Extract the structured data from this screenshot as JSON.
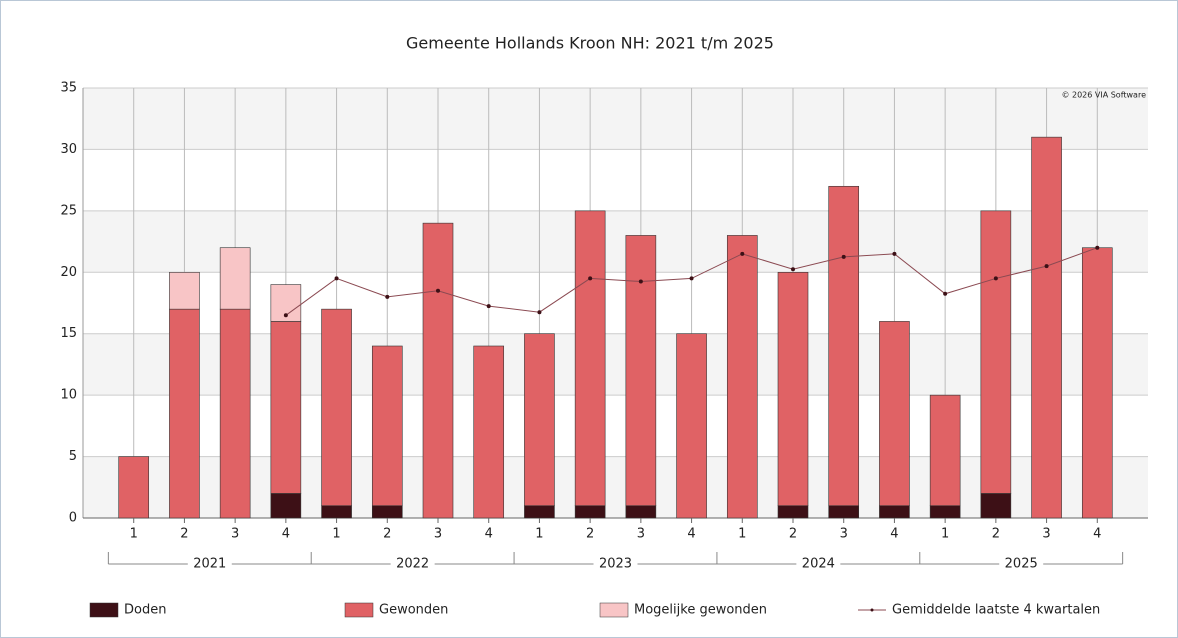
{
  "chart_data": {
    "type": "bar",
    "stacked": true,
    "title": "Gemeente Hollands Kroon NH: 2021 t/m 2025",
    "credit": "© 2026 VIA Software",
    "categories": [
      "1",
      "2",
      "3",
      "4",
      "1",
      "2",
      "3",
      "4",
      "1",
      "2",
      "3",
      "4",
      "1",
      "2",
      "3",
      "4",
      "1",
      "2",
      "3",
      "4"
    ],
    "groups": [
      "2021",
      "2022",
      "2023",
      "2024",
      "2025"
    ],
    "series": [
      {
        "name": "Doden",
        "color": "#3d1016",
        "values": [
          0,
          0,
          0,
          2,
          1,
          1,
          0,
          0,
          1,
          1,
          1,
          0,
          0,
          1,
          1,
          1,
          1,
          2,
          0,
          0
        ]
      },
      {
        "name": "Gewonden",
        "color": "#e06265",
        "values": [
          5,
          17,
          17,
          14,
          16,
          13,
          24,
          14,
          14,
          24,
          22,
          15,
          23,
          19,
          26,
          15,
          9,
          23,
          31,
          22
        ]
      },
      {
        "name": "Mogelijke gewonden",
        "color": "#f8c5c6",
        "values": [
          0,
          3,
          5,
          3,
          0,
          0,
          0,
          0,
          0,
          0,
          0,
          0,
          0,
          0,
          0,
          0,
          0,
          0,
          0,
          0
        ]
      },
      {
        "name": "Gemiddelde laatste 4 kwartalen",
        "type": "line",
        "color": "#8b4a52",
        "values": [
          null,
          null,
          null,
          16.5,
          19.5,
          18,
          18.5,
          17.25,
          16.75,
          19.5,
          19.25,
          19.5,
          21.5,
          20.25,
          21.25,
          21.5,
          18.25,
          19.5,
          20.5,
          22
        ]
      }
    ],
    "ylim": [
      0,
      35
    ],
    "yticks": [
      0,
      5,
      10,
      15,
      20,
      25,
      30,
      35
    ],
    "grid": true
  }
}
